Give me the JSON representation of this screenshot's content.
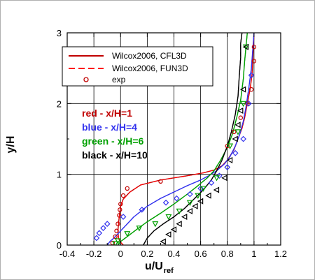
{
  "chart_data": {
    "type": "line",
    "xlabel_main": "u/U",
    "xlabel_sub": "ref",
    "ylabel": "y/H",
    "xlim": [
      -0.4,
      1.2
    ],
    "ylim": [
      0,
      3
    ],
    "xticks": [
      "-0.4",
      "-0.2",
      "0",
      "0.2",
      "0.4",
      "0.6",
      "0.8",
      "1",
      "1.2"
    ],
    "yticks": [
      "0",
      "1",
      "2",
      "3"
    ],
    "grid": true,
    "legend_position": "top-left",
    "legend": [
      {
        "label": "Wilcox2006, CFL3D",
        "style": "solid",
        "color": "#c00000"
      },
      {
        "label": "Wilcox2006, FUN3D",
        "style": "dashed",
        "color": "#ff0000"
      },
      {
        "label": "exp",
        "style": "marker",
        "color": "#c00000"
      }
    ],
    "annotations": [
      {
        "text": "red - x/H=1",
        "color": "#c00000"
      },
      {
        "text": "blue - x/H=4",
        "color": "#3333ee"
      },
      {
        "text": "green - x/H=6",
        "color": "#00a000"
      },
      {
        "text": "black - x/H=10",
        "color": "#000000"
      }
    ],
    "series": [
      {
        "group": "x/H=1",
        "kind": "cfl3d",
        "color": "#c00000",
        "x": [
          0.02,
          -0.005,
          -0.015,
          -0.02,
          -0.01,
          0.0,
          0.02,
          0.07,
          0.15,
          0.3,
          0.5,
          0.62,
          0.7,
          0.76,
          0.8,
          0.85,
          0.88,
          0.91,
          0.93,
          0.95,
          0.97,
          0.985,
          0.99,
          0.995,
          1.0
        ],
        "y": [
          0.0,
          0.05,
          0.1,
          0.2,
          0.4,
          0.55,
          0.65,
          0.75,
          0.85,
          0.92,
          0.98,
          1.02,
          1.06,
          1.12,
          1.2,
          1.35,
          1.5,
          1.65,
          1.8,
          2.0,
          2.2,
          2.4,
          2.6,
          2.8,
          3.0
        ]
      },
      {
        "group": "x/H=1",
        "kind": "fun3d",
        "color": "#ff0000",
        "x": [
          0.02,
          -0.005,
          -0.015,
          -0.02,
          -0.01,
          0.0,
          0.02,
          0.07,
          0.15,
          0.3,
          0.5,
          0.62,
          0.7,
          0.76,
          0.8,
          0.85,
          0.88,
          0.91,
          0.93,
          0.95,
          0.97,
          0.985,
          0.99,
          0.995,
          1.0
        ],
        "y": [
          0.0,
          0.05,
          0.1,
          0.2,
          0.4,
          0.55,
          0.65,
          0.75,
          0.85,
          0.92,
          0.98,
          1.02,
          1.06,
          1.12,
          1.2,
          1.35,
          1.5,
          1.65,
          1.8,
          2.0,
          2.2,
          2.4,
          2.6,
          2.8,
          3.0
        ]
      },
      {
        "group": "x/H=4",
        "kind": "cfl3d",
        "color": "#3333ee",
        "x": [
          -0.1,
          -0.08,
          -0.05,
          0.0,
          0.05,
          0.1,
          0.2,
          0.3,
          0.4,
          0.5,
          0.6,
          0.66,
          0.72,
          0.78,
          0.82,
          0.86,
          0.89,
          0.92,
          0.94,
          0.96,
          0.98,
          0.99,
          1.0
        ],
        "y": [
          0.0,
          0.05,
          0.1,
          0.2,
          0.3,
          0.4,
          0.55,
          0.66,
          0.75,
          0.84,
          0.92,
          0.98,
          1.05,
          1.15,
          1.25,
          1.4,
          1.55,
          1.75,
          1.95,
          2.2,
          2.5,
          2.75,
          3.0
        ]
      },
      {
        "group": "x/H=4",
        "kind": "fun3d",
        "color": "#3333ee",
        "x": [
          -0.1,
          -0.08,
          -0.05,
          0.0,
          0.05,
          0.1,
          0.2,
          0.3,
          0.4,
          0.5,
          0.6,
          0.66,
          0.72,
          0.78,
          0.82,
          0.86,
          0.89,
          0.92,
          0.94,
          0.96,
          0.98,
          0.99,
          1.0
        ],
        "y": [
          0.0,
          0.05,
          0.1,
          0.2,
          0.3,
          0.4,
          0.55,
          0.66,
          0.75,
          0.84,
          0.92,
          0.98,
          1.05,
          1.15,
          1.25,
          1.4,
          1.55,
          1.75,
          1.95,
          2.2,
          2.5,
          2.75,
          3.0
        ]
      },
      {
        "group": "x/H=6",
        "kind": "cfl3d",
        "color": "#00a000",
        "x": [
          -0.02,
          0.0,
          0.05,
          0.12,
          0.2,
          0.3,
          0.4,
          0.5,
          0.58,
          0.65,
          0.7,
          0.75,
          0.8,
          0.84,
          0.87,
          0.9,
          0.92,
          0.93,
          0.94,
          0.95
        ],
        "y": [
          0.0,
          0.05,
          0.12,
          0.22,
          0.33,
          0.45,
          0.58,
          0.72,
          0.84,
          0.95,
          1.05,
          1.2,
          1.38,
          1.58,
          1.8,
          2.05,
          2.35,
          2.6,
          2.8,
          3.0
        ]
      },
      {
        "group": "x/H=6",
        "kind": "fun3d",
        "color": "#00a000",
        "x": [
          -0.02,
          0.0,
          0.05,
          0.12,
          0.2,
          0.3,
          0.4,
          0.5,
          0.58,
          0.65,
          0.7,
          0.75,
          0.8,
          0.84,
          0.87,
          0.9,
          0.92,
          0.93,
          0.94,
          0.95
        ],
        "y": [
          0.0,
          0.05,
          0.12,
          0.22,
          0.33,
          0.45,
          0.58,
          0.72,
          0.84,
          0.95,
          1.05,
          1.2,
          1.38,
          1.58,
          1.8,
          2.05,
          2.35,
          2.6,
          2.8,
          3.0
        ]
      },
      {
        "group": "x/H=10",
        "kind": "cfl3d",
        "color": "#000000",
        "x": [
          0.17,
          0.2,
          0.25,
          0.32,
          0.4,
          0.48,
          0.55,
          0.62,
          0.68,
          0.72,
          0.76,
          0.8,
          0.83,
          0.86,
          0.88,
          0.89,
          0.9,
          0.9,
          0.91
        ],
        "y": [
          0.0,
          0.1,
          0.2,
          0.3,
          0.4,
          0.52,
          0.65,
          0.78,
          0.92,
          1.05,
          1.2,
          1.4,
          1.6,
          1.85,
          2.1,
          2.4,
          2.65,
          2.85,
          3.0
        ]
      },
      {
        "group": "x/H=10",
        "kind": "fun3d",
        "color": "#000000",
        "x": [
          0.17,
          0.2,
          0.25,
          0.32,
          0.4,
          0.48,
          0.55,
          0.62,
          0.68,
          0.72,
          0.76,
          0.8,
          0.83,
          0.86,
          0.88,
          0.89,
          0.9,
          0.9,
          0.91
        ],
        "y": [
          0.0,
          0.1,
          0.2,
          0.3,
          0.4,
          0.52,
          0.65,
          0.78,
          0.92,
          1.05,
          1.2,
          1.4,
          1.6,
          1.85,
          2.1,
          2.4,
          2.65,
          2.85,
          3.0
        ]
      }
    ],
    "experiments": [
      {
        "group": "x/H=1",
        "color": "#c00000",
        "marker": "circle",
        "x": [
          -0.06,
          -0.04,
          -0.03,
          -0.02,
          -0.01,
          -0.005,
          0.0,
          0.02,
          0.05,
          0.3,
          0.8,
          0.85,
          0.9,
          0.95,
          0.98,
          1.0,
          1.0
        ],
        "y": [
          0.03,
          0.12,
          0.2,
          0.3,
          0.42,
          0.5,
          0.58,
          0.7,
          0.8,
          0.9,
          1.4,
          1.6,
          1.8,
          2.0,
          2.2,
          2.6,
          2.8
        ]
      },
      {
        "group": "x/H=4",
        "color": "#3333ee",
        "marker": "diamond",
        "x": [
          -0.18,
          -0.16,
          -0.13,
          -0.1,
          0.02,
          0.16,
          0.34,
          0.42,
          0.52,
          0.6,
          0.68,
          0.74,
          0.8,
          0.86,
          0.92,
          0.96,
          0.98
        ],
        "y": [
          0.1,
          0.17,
          0.24,
          0.3,
          0.4,
          0.5,
          0.6,
          0.66,
          0.72,
          0.8,
          0.88,
          0.98,
          1.1,
          1.3,
          1.5,
          2.0,
          2.4
        ]
      },
      {
        "group": "x/H=6",
        "color": "#00a000",
        "marker": "triangle-down",
        "x": [
          -0.04,
          -0.02,
          0.05,
          0.14,
          0.26,
          0.36,
          0.44,
          0.52,
          0.58,
          0.62,
          0.72,
          0.82,
          0.88,
          0.92,
          0.94
        ],
        "y": [
          0.02,
          0.06,
          0.16,
          0.24,
          0.3,
          0.4,
          0.48,
          0.6,
          0.7,
          0.8,
          0.95,
          1.4,
          1.6,
          2.0,
          2.8
        ]
      },
      {
        "group": "x/H=10",
        "color": "#000000",
        "marker": "triangle-left",
        "x": [
          0.32,
          0.36,
          0.4,
          0.44,
          0.48,
          0.52,
          0.56,
          0.6,
          0.66,
          0.72,
          0.78,
          0.82,
          0.86,
          0.88,
          0.9,
          0.92,
          0.94
        ],
        "y": [
          0.05,
          0.15,
          0.22,
          0.3,
          0.4,
          0.48,
          0.55,
          0.62,
          0.7,
          0.78,
          0.95,
          1.2,
          1.5,
          1.7,
          1.9,
          2.2,
          2.8
        ]
      }
    ]
  }
}
